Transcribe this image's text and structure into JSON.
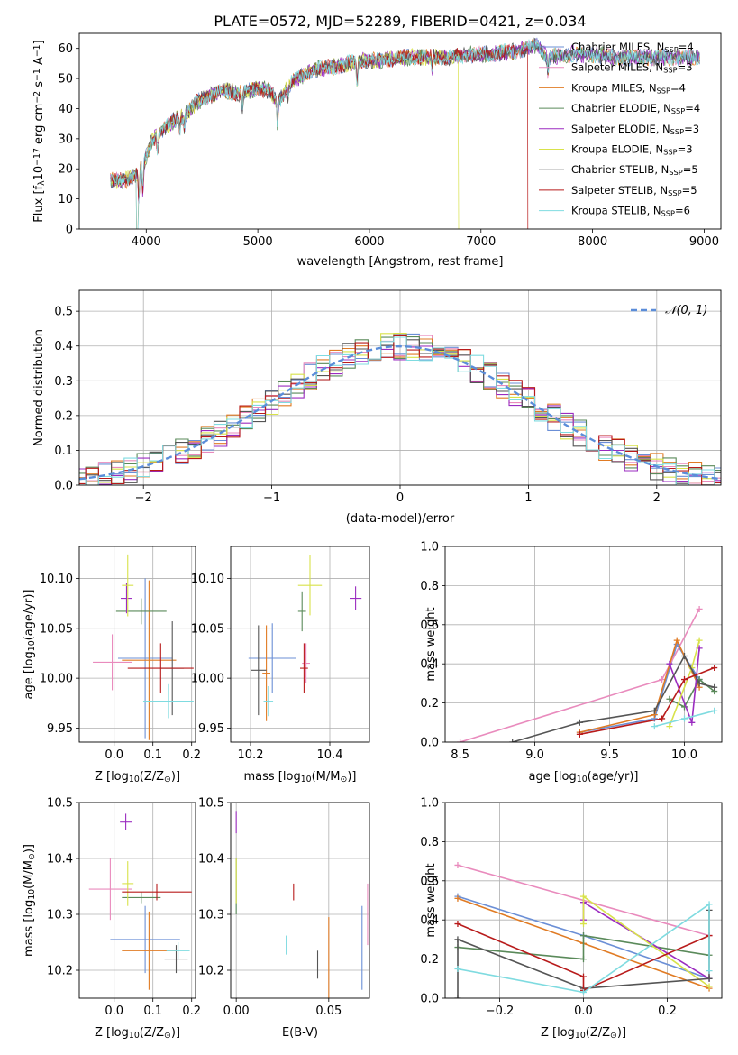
{
  "figure": {
    "title": "PLATE=0572, MJD=52289, FIBERID=0421, z=0.034"
  },
  "colors": {
    "Chabrier MILES": "#6b8fd6",
    "Salpeter MILES": "#e98bbd",
    "Kroupa MILES": "#e07b24",
    "Chabrier ELODIE": "#5a8a5a",
    "Salpeter ELODIE": "#9b2cc0",
    "Kroupa ELODIE": "#d8e24a",
    "Chabrier STELIB": "#555555",
    "Salpeter STELIB": "#b81b1b",
    "Kroupa STELIB": "#7fdbe0"
  },
  "chart_data": [
    {
      "id": "spectrum",
      "type": "line",
      "xlabel": "wavelength [Angstrom, rest frame]",
      "ylabel_parts": [
        "Flux [f",
        "λ",
        "10",
        "−17",
        " erg cm",
        "−2",
        " s",
        "−1",
        " A",
        "−1",
        "]"
      ],
      "xlim": [
        3400,
        9150
      ],
      "ylim": [
        0,
        65
      ],
      "xticks": [
        4000,
        5000,
        6000,
        7000,
        8000,
        9000
      ],
      "yticks": [
        0,
        10,
        20,
        30,
        40,
        50,
        60
      ],
      "grid": false,
      "legend_position": "right",
      "series": [
        {
          "name": "Chabrier MILES",
          "legend": [
            "Chabrier MILES, N",
            "SSP",
            "=4"
          ]
        },
        {
          "name": "Salpeter MILES",
          "legend": [
            "Salpeter MILES, N",
            "SSP",
            "=3"
          ]
        },
        {
          "name": "Kroupa MILES",
          "legend": [
            "Kroupa MILES, N",
            "SSP",
            "=4"
          ]
        },
        {
          "name": "Chabrier ELODIE",
          "legend": [
            "Chabrier ELODIE, N",
            "SSP",
            "=4"
          ]
        },
        {
          "name": "Salpeter ELODIE",
          "legend": [
            "Salpeter ELODIE, N",
            "SSP",
            "=3"
          ]
        },
        {
          "name": "Kroupa ELODIE",
          "legend": [
            "Kroupa ELODIE, N",
            "SSP",
            "=3"
          ]
        },
        {
          "name": "Chabrier STELIB",
          "legend": [
            "Chabrier STELIB, N",
            "SSP",
            "=5"
          ]
        },
        {
          "name": "Salpeter STELIB",
          "legend": [
            "Salpeter STELIB, N",
            "SSP",
            "=5"
          ]
        },
        {
          "name": "Kroupa STELIB",
          "legend": [
            "Kroupa STELIB, N",
            "SSP",
            "=6"
          ]
        }
      ],
      "continuum": [
        [
          3680,
          16
        ],
        [
          3800,
          16
        ],
        [
          3900,
          18
        ],
        [
          3970,
          21
        ],
        [
          4050,
          29
        ],
        [
          4150,
          33
        ],
        [
          4250,
          36
        ],
        [
          4350,
          38
        ],
        [
          4450,
          42
        ],
        [
          4550,
          44
        ],
        [
          4700,
          46
        ],
        [
          4860,
          45
        ],
        [
          5000,
          47
        ],
        [
          5100,
          46
        ],
        [
          5180,
          42
        ],
        [
          5300,
          49
        ],
        [
          5500,
          53
        ],
        [
          5700,
          54
        ],
        [
          5900,
          56
        ],
        [
          6100,
          56
        ],
        [
          6300,
          57
        ],
        [
          6500,
          57
        ],
        [
          6700,
          57
        ],
        [
          6900,
          58
        ],
        [
          7100,
          58
        ],
        [
          7300,
          59
        ],
        [
          7500,
          61
        ],
        [
          7600,
          57
        ],
        [
          7800,
          58
        ],
        [
          8000,
          58
        ],
        [
          8200,
          57
        ],
        [
          8400,
          57
        ],
        [
          8600,
          57
        ],
        [
          8800,
          57
        ],
        [
          8950,
          57
        ]
      ],
      "cutoffs": {
        "Salpeter STELIB": 7420,
        "Kroupa ELODIE": 6800
      },
      "lowstart": {
        "Kroupa STELIB": 3920,
        "Kroupa MILES": 3920
      }
    },
    {
      "id": "residual-hist",
      "type": "area",
      "xlabel": "(data-model)/error",
      "ylabel": "Normed distribution",
      "xlim": [
        -2.5,
        2.5
      ],
      "ylim": [
        0,
        0.56
      ],
      "xticks": [
        -2,
        -1,
        0,
        1,
        2
      ],
      "xtick_labels": [
        "−2",
        "−1",
        "0",
        "1",
        "2"
      ],
      "yticks": [
        0,
        0.1,
        0.2,
        0.3,
        0.4,
        0.5
      ],
      "ytick_labels": [
        "0.0",
        "0.1",
        "0.2",
        "0.3",
        "0.4",
        "0.5"
      ],
      "grid": true,
      "bin_width": 0.1,
      "legend_position": "top-right",
      "gaussian_label": "𝒩(0, 1)",
      "gaussian_color": "#5b8dd9"
    },
    {
      "id": "Z-age",
      "type": "scatter",
      "xlabel_parts": [
        "Z [log",
        "10",
        "(Z/Z",
        "⊙",
        ")]"
      ],
      "ylabel_parts": [
        "age  [log",
        "10",
        "(age/yr)]"
      ],
      "xlim": [
        -0.09,
        0.21
      ],
      "ylim": [
        9.936,
        10.132
      ],
      "xticks": [
        0.0,
        0.1,
        0.2
      ],
      "xtick_labels": [
        "0.0",
        "0.1",
        "0.2"
      ],
      "yticks": [
        9.95,
        10.0,
        10.05,
        10.1
      ],
      "ytick_labels": [
        "9.95",
        "10.00",
        "10.05",
        "10.10"
      ],
      "grid": true,
      "points": [
        {
          "series": "Chabrier MILES",
          "x": 0.08,
          "y": 10.02,
          "ex": 0.07,
          "ey": 0.08
        },
        {
          "series": "Salpeter MILES",
          "x": -0.005,
          "y": 10.016,
          "ex": 0.05,
          "ey": 0.028
        },
        {
          "series": "Kroupa MILES",
          "x": 0.09,
          "y": 10.018,
          "ex": 0.07,
          "ey": 0.08
        },
        {
          "series": "Chabrier ELODIE",
          "x": 0.07,
          "y": 10.067,
          "ex": 0.065,
          "ey": 0.013
        },
        {
          "series": "Salpeter ELODIE",
          "x": 0.032,
          "y": 10.08,
          "ex": 0.015,
          "ey": 0.015
        },
        {
          "series": "Kroupa ELODIE",
          "x": 0.035,
          "y": 10.093,
          "ex": 0.015,
          "ey": 0.031
        },
        {
          "series": "Chabrier STELIB",
          "x": 0.15,
          "y": 10.01,
          "ex": 0.03,
          "ey": 0.047
        },
        {
          "series": "Salpeter STELIB",
          "x": 0.12,
          "y": 10.01,
          "ex": 0.085,
          "ey": 0.025
        },
        {
          "series": "Kroupa STELIB",
          "x": 0.14,
          "y": 9.977,
          "ex": 0.065,
          "ey": 0.017
        }
      ]
    },
    {
      "id": "mass-age",
      "type": "scatter",
      "xlabel_parts": [
        "mass [log",
        "10",
        "(M/M",
        "⊙",
        ")]"
      ],
      "xlim": [
        10.15,
        10.5
      ],
      "ylim": [
        9.936,
        10.132
      ],
      "xticks": [
        10.2,
        10.4
      ],
      "xtick_labels": [
        "10.2",
        "10.4"
      ],
      "yticks": [
        9.95,
        10.0,
        10.05,
        10.1
      ],
      "ytick_labels": [
        "9.95",
        "10.00",
        "10.05",
        "10.10"
      ],
      "grid": true,
      "points": [
        {
          "series": "Chabrier MILES",
          "x": 10.255,
          "y": 10.02,
          "ex": 0.06,
          "ey": 0.035
        },
        {
          "series": "Salpeter MILES",
          "x": 10.34,
          "y": 10.015,
          "ex": 0.01,
          "ey": 0.02
        },
        {
          "series": "Kroupa MILES",
          "x": 10.24,
          "y": 10.005,
          "ex": 0.01,
          "ey": 0.048
        },
        {
          "series": "Chabrier ELODIE",
          "x": 10.33,
          "y": 10.067,
          "ex": 0.01,
          "ey": 0.02
        },
        {
          "series": "Salpeter ELODIE",
          "x": 10.465,
          "y": 10.08,
          "ex": 0.015,
          "ey": 0.012
        },
        {
          "series": "Kroupa ELODIE",
          "x": 10.35,
          "y": 10.093,
          "ex": 0.03,
          "ey": 0.03
        },
        {
          "series": "Chabrier STELIB",
          "x": 10.22,
          "y": 10.008,
          "ex": 0.02,
          "ey": 0.045
        },
        {
          "series": "Salpeter STELIB",
          "x": 10.335,
          "y": 10.01,
          "ex": 0.01,
          "ey": 0.025
        },
        {
          "series": "Kroupa STELIB",
          "x": 10.245,
          "y": 9.977,
          "ex": 0.012,
          "ey": 0.015
        }
      ]
    },
    {
      "id": "age-massweight",
      "type": "line",
      "xlabel_parts": [
        "age  [log",
        "10",
        "(age/yr)]"
      ],
      "ylabel": "mass weight",
      "xlim": [
        8.4,
        10.25
      ],
      "ylim": [
        0,
        1
      ],
      "xticks": [
        8.5,
        9.0,
        9.5,
        10.0
      ],
      "xtick_labels": [
        "8.5",
        "9.0",
        "9.5",
        "10.0"
      ],
      "yticks": [
        0,
        0.2,
        0.4,
        0.6,
        0.8,
        1.0
      ],
      "ytick_labels": [
        "0.0",
        "0.2",
        "0.4",
        "0.6",
        "0.8",
        "1.0"
      ],
      "grid": true,
      "series": [
        {
          "name": "Chabrier MILES",
          "x": [
            9.3,
            9.8,
            9.95,
            10.1
          ],
          "y": [
            0.05,
            0.12,
            0.5,
            0.32
          ]
        },
        {
          "name": "Salpeter MILES",
          "x": [
            8.5,
            9.85,
            10.1
          ],
          "y": [
            0.0,
            0.32,
            0.68
          ]
        },
        {
          "name": "Kroupa MILES",
          "x": [
            9.3,
            9.8,
            9.95,
            10.1
          ],
          "y": [
            0.05,
            0.14,
            0.52,
            0.28
          ]
        },
        {
          "name": "Chabrier ELODIE",
          "x": [
            9.9,
            10.0,
            10.1,
            10.2
          ],
          "y": [
            0.22,
            0.18,
            0.32,
            0.26
          ]
        },
        {
          "name": "Salpeter ELODIE",
          "x": [
            9.9,
            10.05,
            10.1
          ],
          "y": [
            0.4,
            0.1,
            0.48
          ]
        },
        {
          "name": "Kroupa ELODIE",
          "x": [
            9.9,
            10.05,
            10.1
          ],
          "y": [
            0.08,
            0.38,
            0.52
          ]
        },
        {
          "name": "Chabrier STELIB",
          "x": [
            8.85,
            9.3,
            9.8,
            10.0,
            10.1,
            10.2
          ],
          "y": [
            0.0,
            0.1,
            0.16,
            0.44,
            0.3,
            0.28
          ]
        },
        {
          "name": "Salpeter STELIB",
          "x": [
            9.3,
            9.85,
            10.0,
            10.2
          ],
          "y": [
            0.04,
            0.12,
            0.32,
            0.38
          ]
        },
        {
          "name": "Kroupa STELIB",
          "x": [
            9.8,
            10.0,
            10.2
          ],
          "y": [
            0.08,
            0.12,
            0.16
          ]
        }
      ]
    },
    {
      "id": "Z-mass",
      "type": "scatter",
      "xlabel_parts": [
        "Z [log",
        "10",
        "(Z/Z",
        "⊙",
        ")]"
      ],
      "ylabel_parts": [
        "mass [log",
        "10",
        "(M/M",
        "⊙",
        ")]"
      ],
      "xlim": [
        -0.09,
        0.21
      ],
      "ylim": [
        10.15,
        10.5
      ],
      "xticks": [
        0.0,
        0.1,
        0.2
      ],
      "xtick_labels": [
        "0.0",
        "0.1",
        "0.2"
      ],
      "yticks": [
        10.2,
        10.3,
        10.4,
        10.5
      ],
      "ytick_labels": [
        "10.2",
        "10.3",
        "10.4",
        "10.5"
      ],
      "grid": true,
      "points": [
        {
          "series": "Chabrier MILES",
          "x": 0.08,
          "y": 10.255,
          "ex": 0.09,
          "ey": 0.06
        },
        {
          "series": "Salpeter MILES",
          "x": -0.01,
          "y": 10.345,
          "ex": 0.055,
          "ey": 0.055
        },
        {
          "series": "Kroupa MILES",
          "x": 0.09,
          "y": 10.235,
          "ex": 0.07,
          "ey": 0.07
        },
        {
          "series": "Chabrier ELODIE",
          "x": 0.07,
          "y": 10.33,
          "ex": 0.05,
          "ey": 0.01
        },
        {
          "series": "Salpeter ELODIE",
          "x": 0.03,
          "y": 10.465,
          "ex": 0.015,
          "ey": 0.015
        },
        {
          "series": "Kroupa ELODIE",
          "x": 0.035,
          "y": 10.355,
          "ex": 0.015,
          "ey": 0.04
        },
        {
          "series": "Chabrier STELIB",
          "x": 0.16,
          "y": 10.22,
          "ex": 0.03,
          "ey": 0.025
        },
        {
          "series": "Salpeter STELIB",
          "x": 0.11,
          "y": 10.34,
          "ex": 0.09,
          "ey": 0.015
        },
        {
          "series": "Kroupa STELIB",
          "x": 0.165,
          "y": 10.235,
          "ex": 0.03,
          "ey": 0.015
        }
      ]
    },
    {
      "id": "ebv-mass",
      "type": "scatter",
      "xlabel": "E(B-V)",
      "xlim": [
        -0.003,
        0.072
      ],
      "ylim": [
        10.15,
        10.5
      ],
      "xticks": [
        0.0,
        0.05
      ],
      "xtick_labels": [
        "0.00",
        "0.05"
      ],
      "yticks": [
        10.2,
        10.3,
        10.4,
        10.5
      ],
      "ytick_labels": [
        "10.2",
        "10.3",
        "10.4",
        "10.5"
      ],
      "grid": true,
      "points": [
        {
          "series": "Chabrier MILES",
          "x": 0.068,
          "y": 10.24,
          "ex": 0,
          "ey": 0.075
        },
        {
          "series": "Salpeter MILES",
          "x": 0.071,
          "y": 10.3,
          "ex": 0,
          "ey": 0.055
        },
        {
          "series": "Kroupa MILES",
          "x": 0.05,
          "y": 10.22,
          "ex": 0,
          "ey": 0.075
        },
        {
          "series": "Chabrier ELODIE",
          "x": 0.0,
          "y": 10.35,
          "ex": 0,
          "ey": 0.05
        },
        {
          "series": "Salpeter ELODIE",
          "x": 0.0,
          "y": 10.465,
          "ex": 0,
          "ey": 0.02
        },
        {
          "series": "Kroupa ELODIE",
          "x": 0.0,
          "y": 10.36,
          "ex": 0,
          "ey": 0.04
        },
        {
          "series": "Chabrier STELIB",
          "x": 0.044,
          "y": 10.21,
          "ex": 0,
          "ey": 0.025
        },
        {
          "series": "Salpeter STELIB",
          "x": 0.031,
          "y": 10.34,
          "ex": 0,
          "ey": 0.015
        },
        {
          "series": "Kroupa STELIB",
          "x": 0.027,
          "y": 10.245,
          "ex": 0,
          "ey": 0.017
        }
      ]
    },
    {
      "id": "Z-massweight",
      "type": "line",
      "xlabel_parts": [
        "Z [log",
        "10",
        "(Z/Z",
        "⊙",
        ")]"
      ],
      "ylabel": "mass weight",
      "xlim": [
        -0.33,
        0.33
      ],
      "ylim": [
        0,
        1
      ],
      "xticks": [
        -0.2,
        0.0,
        0.2
      ],
      "xtick_labels": [
        "−0.2",
        "0.0",
        "0.2"
      ],
      "yticks": [
        0,
        0.2,
        0.4,
        0.6,
        0.8,
        1.0
      ],
      "ytick_labels": [
        "0.0",
        "0.2",
        "0.4",
        "0.6",
        "0.8",
        "1.0"
      ],
      "grid": true,
      "series": [
        {
          "name": "Chabrier MILES",
          "x": [
            -0.3,
            0.0,
            0.3
          ],
          "y": [
            0.52,
            0.32,
            0.1
          ]
        },
        {
          "name": "Salpeter MILES",
          "x": [
            -0.3,
            0.3
          ],
          "y": [
            0.68,
            0.32
          ]
        },
        {
          "name": "Kroupa MILES",
          "x": [
            -0.3,
            0.0,
            0.3
          ],
          "y": [
            0.51,
            0.28,
            0.05
          ]
        },
        {
          "name": "Chabrier ELODIE",
          "x": [
            -0.3,
            0.0,
            0.0,
            0.3
          ],
          "y": [
            0.26,
            0.2,
            0.32,
            0.22
          ]
        },
        {
          "name": "Salpeter ELODIE",
          "x": [
            0.0,
            0.0,
            0.3
          ],
          "y": [
            0.4,
            0.49,
            0.1
          ]
        },
        {
          "name": "Kroupa ELODIE",
          "x": [
            0.0,
            0.0,
            0.3
          ],
          "y": [
            0.38,
            0.52,
            0.06
          ]
        },
        {
          "name": "Chabrier STELIB",
          "x": [
            -0.3,
            -0.3,
            0.0,
            0.3,
            0.3
          ],
          "y": [
            0.0,
            0.3,
            0.05,
            0.1,
            0.45
          ]
        },
        {
          "name": "Salpeter STELIB",
          "x": [
            -0.3,
            0.0,
            0.0,
            0.3
          ],
          "y": [
            0.38,
            0.11,
            0.04,
            0.32
          ]
        },
        {
          "name": "Kroupa STELIB",
          "x": [
            -0.3,
            0.0,
            0.3,
            0.3
          ],
          "y": [
            0.15,
            0.03,
            0.48,
            0.14
          ]
        }
      ]
    }
  ]
}
